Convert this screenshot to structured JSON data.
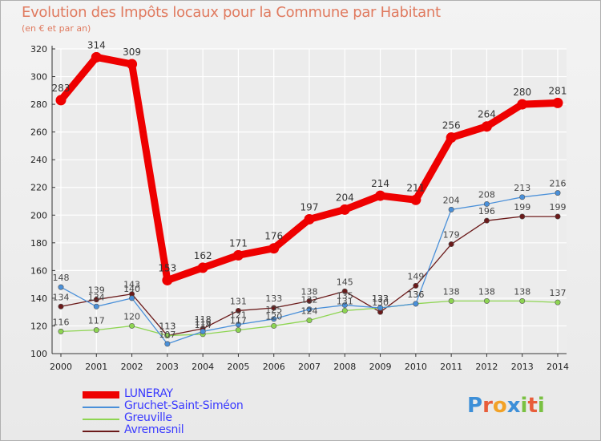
{
  "title": "Evolution des Impôts locaux pour la Commune par Habitant",
  "subtitle": "(en € et par an)",
  "logo": {
    "letters": [
      "P",
      "r",
      "o",
      "x",
      "i",
      "t",
      "i"
    ]
  },
  "colors": {
    "background": "#eeeeee",
    "grid": "#ffffff",
    "logo": [
      "#3d8fd8",
      "#e85d3a",
      "#f2a227",
      "#3d8fd8",
      "#7ac142",
      "#e85d3a",
      "#7ac142"
    ]
  },
  "chart_data": {
    "type": "line",
    "title": "Evolution des Impôts locaux pour la Commune par Habitant",
    "subtitle": "(en € et par an)",
    "x": [
      2000,
      2001,
      2002,
      2003,
      2004,
      2005,
      2006,
      2007,
      2008,
      2009,
      2010,
      2011,
      2012,
      2013,
      2014
    ],
    "ylim": [
      100,
      320
    ],
    "yticks": [
      100,
      120,
      140,
      160,
      180,
      200,
      220,
      240,
      260,
      280,
      300,
      320
    ],
    "grid": true,
    "legend_position": "bottom-left",
    "series": [
      {
        "name": "LUNERAY",
        "color": "#ee0000",
        "values": [
          283,
          314,
          309,
          153,
          162,
          171,
          176,
          197,
          204,
          214,
          211,
          256,
          264,
          280,
          281
        ]
      },
      {
        "name": "Gruchet-Saint-Siméon",
        "color": "#4a90d9",
        "values": [
          148,
          134,
          140,
          107,
          116,
          121,
          125,
          132,
          135,
          133,
          136,
          204,
          208,
          213,
          216
        ]
      },
      {
        "name": "Greuville",
        "color": "#8ed552",
        "values": [
          116,
          117,
          120,
          113,
          114,
          117,
          120,
          124,
          131,
          133,
          136,
          138,
          138,
          138,
          137
        ]
      },
      {
        "name": "Avremesnil",
        "color": "#6b1a1a",
        "values": [
          134,
          139,
          143,
          113,
          118,
          131,
          133,
          138,
          145,
          130,
          149,
          179,
          196,
          199,
          199
        ]
      }
    ]
  }
}
